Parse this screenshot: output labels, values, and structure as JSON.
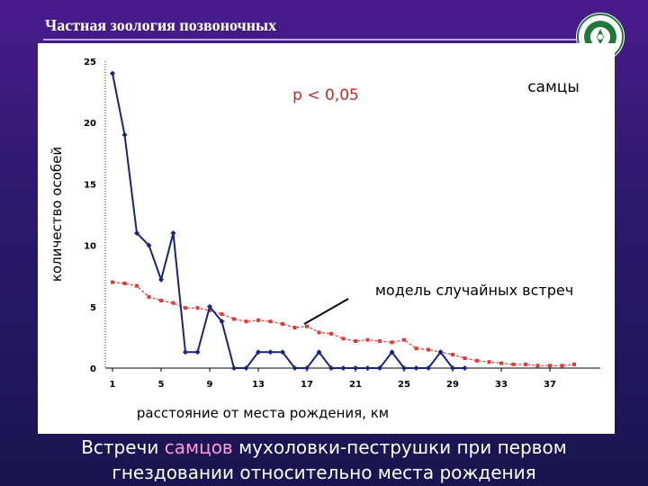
{
  "slide": {
    "title": "Частная зоология позвоночных",
    "caption_part1": "Встречи ",
    "caption_highlight": "самцов",
    "caption_part2": " мухоловки-пеструшки при первом",
    "caption_line2": "гнездовании относительно места рождения",
    "logo_icon": "university-emblem-icon"
  },
  "colors": {
    "background": "#3a1a7e",
    "observed_series": "#1a237e",
    "model_series": "#e53935",
    "caption_highlight": "#ff9bd2"
  },
  "chart_data": {
    "type": "line",
    "title": "",
    "xlabel": "расстояние от места рождения, км",
    "ylabel": "количество особей",
    "ylim": [
      0,
      25
    ],
    "xlim": [
      0,
      39
    ],
    "y_ticks": [
      "0",
      "5",
      "10",
      "15",
      "20",
      "25"
    ],
    "x_ticks": [
      1,
      5,
      9,
      13,
      17,
      21,
      25,
      29,
      33,
      37
    ],
    "annotations": {
      "significance": "p < 0,05",
      "group": "самцы",
      "model_label": "модель случайных встреч"
    },
    "series": [
      {
        "key": "observed",
        "x": [
          1,
          2,
          3,
          4,
          5,
          6,
          7,
          8,
          9,
          10,
          11,
          12,
          13,
          14,
          15,
          16,
          17,
          18,
          19,
          20,
          21,
          22,
          23,
          24,
          25,
          26,
          27,
          28,
          29,
          30
        ],
        "values": [
          24,
          19,
          11,
          10,
          7.2,
          11,
          1.3,
          1.3,
          5,
          3.8,
          0,
          0,
          1.3,
          1.3,
          1.3,
          0,
          0,
          1.3,
          0,
          0,
          0,
          0,
          0,
          1.3,
          0,
          0,
          0,
          1.3,
          0,
          0
        ]
      },
      {
        "key": "model",
        "x": [
          1,
          2,
          3,
          4,
          5,
          6,
          7,
          8,
          9,
          10,
          11,
          12,
          13,
          14,
          15,
          16,
          17,
          18,
          19,
          20,
          21,
          22,
          23,
          24,
          25,
          26,
          27,
          28,
          29,
          30,
          31,
          32,
          33,
          34,
          35,
          36,
          37,
          38,
          39
        ],
        "values": [
          7,
          6.9,
          6.7,
          5.8,
          5.5,
          5.3,
          4.9,
          4.9,
          4.7,
          4.4,
          4,
          3.8,
          3.9,
          3.8,
          3.6,
          3.3,
          3.4,
          2.9,
          2.8,
          2.4,
          2.2,
          2.3,
          2.2,
          2.1,
          2.3,
          1.6,
          1.5,
          1.3,
          1.1,
          0.8,
          0.6,
          0.5,
          0.4,
          0.3,
          0.3,
          0.2,
          0.2,
          0.2,
          0.3
        ]
      }
    ]
  }
}
